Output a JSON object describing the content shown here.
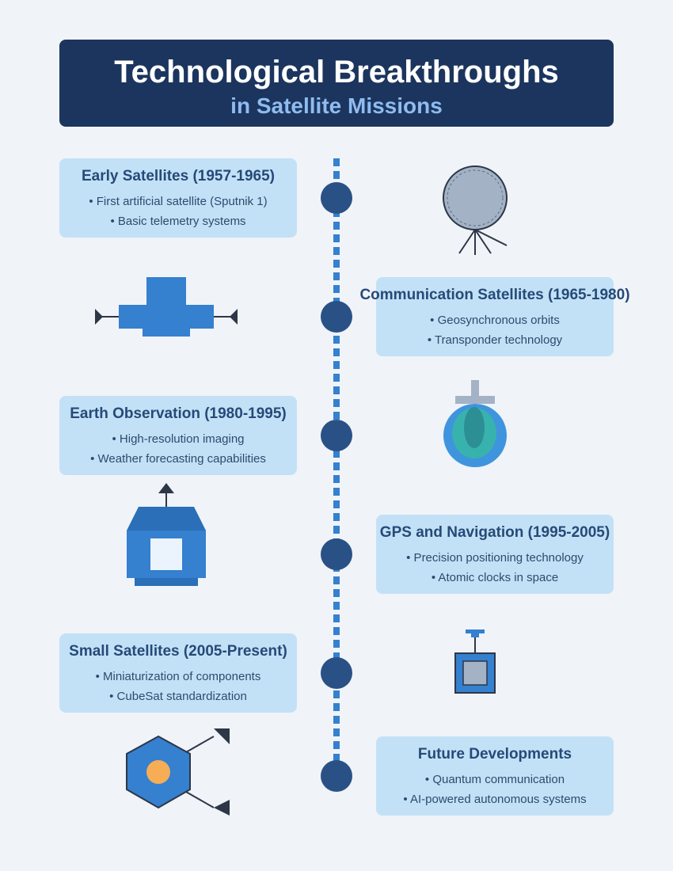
{
  "header": {
    "title": "Technological Breakthroughs",
    "subtitle": "in Satellite Missions"
  },
  "milestones": [
    {
      "title": "Early Satellites (1957-1965)",
      "points": [
        "• First artificial satellite (Sputnik 1)",
        "• Basic telemetry systems"
      ],
      "side": "left",
      "icon": "sputnik-icon"
    },
    {
      "title": "Communication Satellites (1965-1980)",
      "points": [
        "• Geosynchronous orbits",
        "• Transponder technology"
      ],
      "side": "right",
      "icon": "communication-satellite-icon"
    },
    {
      "title": "Earth Observation (1980-1995)",
      "points": [
        "• High-resolution imaging",
        "• Weather forecasting capabilities"
      ],
      "side": "left",
      "icon": "earth-globe-icon"
    },
    {
      "title": "GPS and Navigation (1995-2005)",
      "points": [
        "• Precision positioning technology",
        "• Atomic clocks in space"
      ],
      "side": "right",
      "icon": "gps-satellite-icon"
    },
    {
      "title": "Small Satellites (2005-Present)",
      "points": [
        "• Miniaturization of components",
        "• CubeSat standardization"
      ],
      "side": "left",
      "icon": "cubesat-icon"
    },
    {
      "title": "Future Developments",
      "points": [
        "• Quantum communication",
        "• AI-powered autonomous systems"
      ],
      "side": "right",
      "icon": "hexagon-satellite-icon"
    }
  ],
  "colors": {
    "background": "#f0f3f8",
    "header": "#1c355e",
    "subtitle": "#8fbcf0",
    "card": "#c3e1f6",
    "node": "#2a5185",
    "timeline": "#3580cf"
  }
}
